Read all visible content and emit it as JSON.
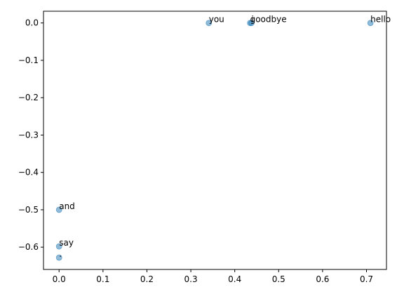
{
  "chart_data": {
    "type": "scatter",
    "title": "",
    "xlabel": "",
    "ylabel": "",
    "xlim": [
      -0.0355,
      0.7455
    ],
    "ylim": [
      -0.6597,
      0.0314
    ],
    "grid": false,
    "marker_color": "#1f77b4",
    "marker_alpha": 0.5,
    "x_ticks": [
      "0.0",
      "0.1",
      "0.2",
      "0.3",
      "0.4",
      "0.5",
      "0.6",
      "0.7"
    ],
    "x_tick_values": [
      0.0,
      0.1,
      0.2,
      0.3,
      0.4,
      0.5,
      0.6,
      0.7
    ],
    "y_ticks": [
      "0.0",
      "−0.1",
      "−0.2",
      "−0.3",
      "−0.4",
      "−0.5",
      "−0.6"
    ],
    "y_tick_values": [
      0.0,
      -0.1,
      -0.2,
      -0.3,
      -0.4,
      -0.5,
      -0.6
    ],
    "points": [
      {
        "label": "you",
        "x": 0.341,
        "y": 0.0
      },
      {
        "label": "goodbye",
        "x": 0.435,
        "y": 0.0
      },
      {
        "label": "i",
        "x": 0.438,
        "y": 0.0
      },
      {
        "label": "hello",
        "x": 0.709,
        "y": 0.0
      },
      {
        "label": "and",
        "x": 0.0,
        "y": -0.5
      },
      {
        "label": "say",
        "x": 0.0,
        "y": -0.598
      },
      {
        "label": ".",
        "x": 0.0,
        "y": -0.628
      }
    ]
  }
}
